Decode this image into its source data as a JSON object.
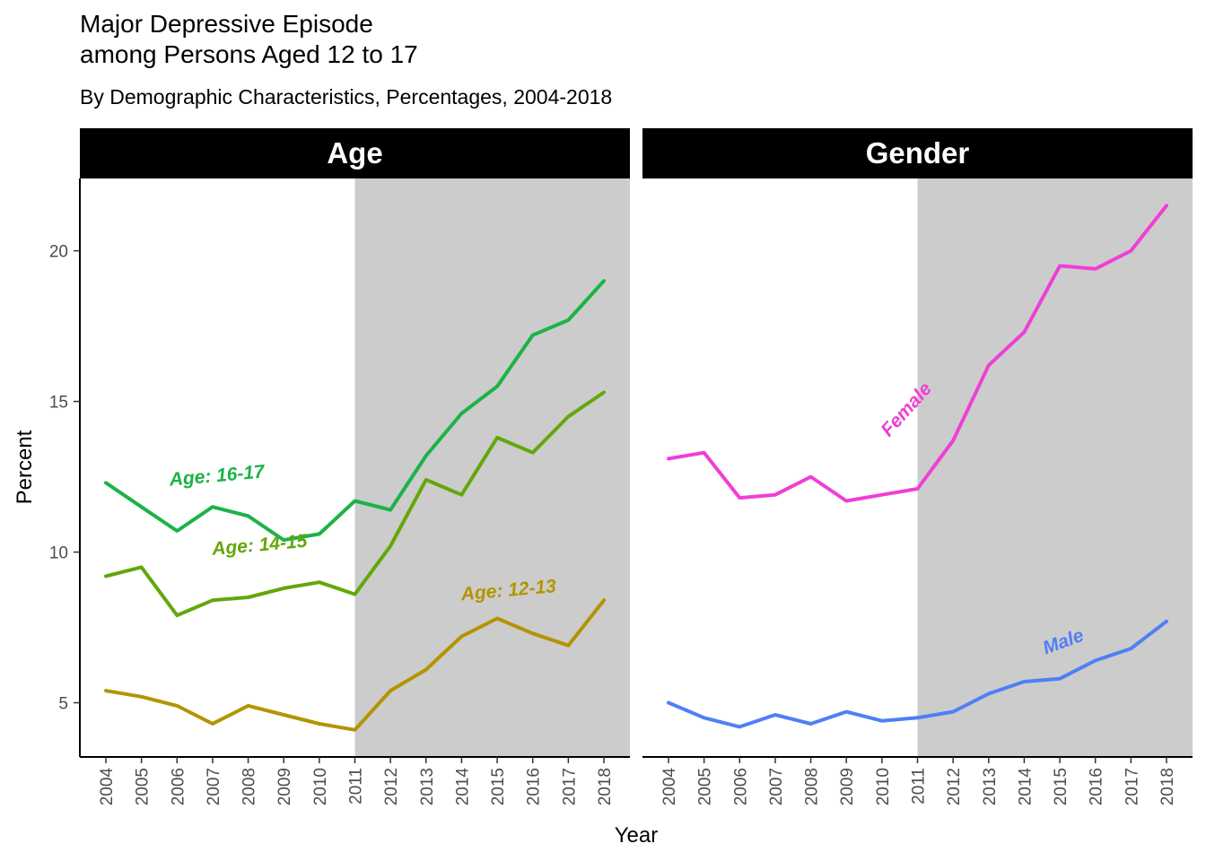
{
  "chart_data": {
    "type": "line",
    "title_line1": "Major Depressive Episode",
    "title_line2": "among Persons Aged 12 to 17",
    "subtitle": "By Demographic Characteristics, Percentages, 2004-2018",
    "xlabel": "Year",
    "ylabel": "Percent",
    "x": [
      "2004",
      "2005",
      "2006",
      "2007",
      "2008",
      "2009",
      "2010",
      "2011",
      "2012",
      "2013",
      "2014",
      "2015",
      "2016",
      "2017",
      "2018"
    ],
    "ylim": [
      3.2,
      22.4
    ],
    "yticks": [
      "5",
      "10",
      "15",
      "20"
    ],
    "shaded_from": "2011",
    "shade_color": "#cccccc",
    "panels": [
      {
        "name": "Age",
        "series": [
          {
            "name": "Age: 16-17",
            "color": "#1bb347",
            "values": [
              12.3,
              11.5,
              10.7,
              11.5,
              11.2,
              10.4,
              10.6,
              11.7,
              11.4,
              13.2,
              14.6,
              15.5,
              17.2,
              17.7,
              19.0
            ],
            "label_at": {
              "x": 2005.8,
              "y": 12.2,
              "angle": -5
            }
          },
          {
            "name": "Age: 14-15",
            "color": "#63a70a",
            "values": [
              9.2,
              9.5,
              7.9,
              8.4,
              8.5,
              8.8,
              9.0,
              8.6,
              10.2,
              12.4,
              11.9,
              13.8,
              13.3,
              14.5,
              15.3
            ],
            "label_at": {
              "x": 2007.0,
              "y": 9.9,
              "angle": -5
            }
          },
          {
            "name": "Age: 12-13",
            "color": "#b39400",
            "values": [
              5.4,
              5.2,
              4.9,
              4.3,
              4.9,
              4.6,
              4.3,
              4.1,
              5.4,
              6.1,
              7.2,
              7.8,
              7.3,
              6.9,
              8.4
            ],
            "label_at": {
              "x": 2014.0,
              "y": 8.4,
              "angle": -5
            }
          }
        ]
      },
      {
        "name": "Gender",
        "series": [
          {
            "name": "Female",
            "color": "#ef3fd6",
            "values": [
              13.1,
              13.3,
              11.8,
              11.9,
              12.5,
              11.7,
              11.9,
              12.1,
              13.7,
              16.2,
              17.3,
              19.5,
              19.4,
              20.0,
              21.5
            ],
            "label_at": {
              "x": 2010.2,
              "y": 13.8,
              "angle": -48
            }
          },
          {
            "name": "Male",
            "color": "#4f7ff5",
            "values": [
              5.0,
              4.5,
              4.2,
              4.6,
              4.3,
              4.7,
              4.4,
              4.5,
              4.7,
              5.3,
              5.7,
              5.8,
              6.4,
              6.8,
              7.7
            ],
            "label_at": {
              "x": 2014.6,
              "y": 6.6,
              "angle": -20
            }
          }
        ]
      }
    ]
  }
}
